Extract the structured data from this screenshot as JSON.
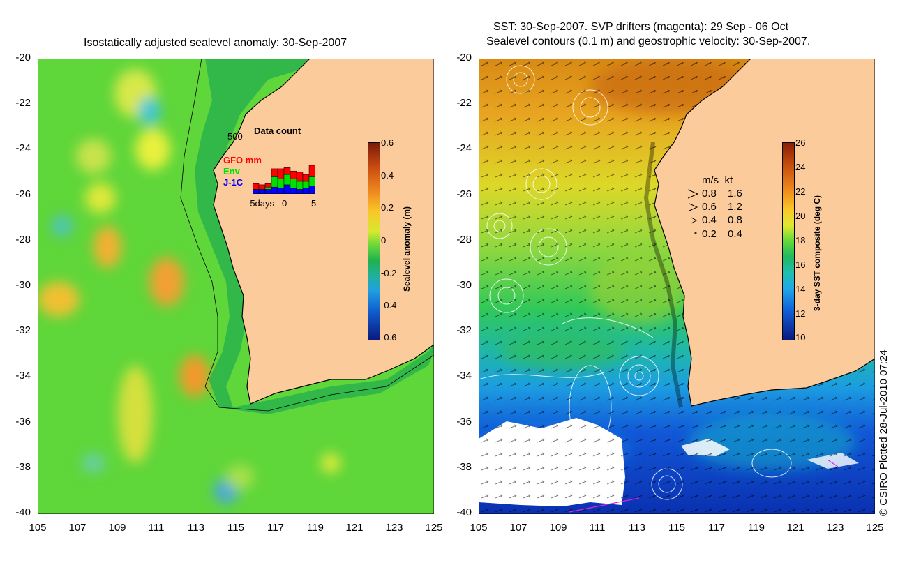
{
  "left_panel": {
    "title": "Isostatically adjusted sealevel anomaly: 30-Sep-2007",
    "y_ticks": [
      "-20",
      "-22",
      "-24",
      "-26",
      "-28",
      "-30",
      "-32",
      "-34",
      "-36",
      "-38",
      "-40"
    ],
    "x_ticks": [
      "105",
      "107",
      "109",
      "111",
      "113",
      "115",
      "117",
      "119",
      "121",
      "123",
      "125"
    ],
    "colorbar": {
      "ticks": [
        "0.6",
        "0.4",
        "0.2",
        "0",
        "-0.2",
        "-0.4",
        "-0.6"
      ],
      "label": "Sealevel anomaly (m)"
    },
    "inset": {
      "title": "Data count",
      "y_max": "500",
      "x_ticks": [
        "-5days",
        "0",
        "5"
      ],
      "legend": [
        {
          "label": "GFO mm",
          "color": "#ff0000"
        },
        {
          "label": "Env",
          "color": "#00e000"
        },
        {
          "label": "J-1C",
          "color": "#0000ff"
        }
      ],
      "bars": [
        {
          "day": -5,
          "j1c": 40,
          "env": 0,
          "gfo": 50
        },
        {
          "day": -4,
          "j1c": 40,
          "env": 0,
          "gfo": 40
        },
        {
          "day": -3,
          "j1c": 40,
          "env": 20,
          "gfo": 30
        },
        {
          "day": -2,
          "j1c": 60,
          "env": 90,
          "gfo": 70
        },
        {
          "day": -1,
          "j1c": 50,
          "env": 80,
          "gfo": 90
        },
        {
          "day": 0,
          "j1c": 80,
          "env": 90,
          "gfo": 60
        },
        {
          "day": 1,
          "j1c": 50,
          "env": 80,
          "gfo": 70
        },
        {
          "day": 2,
          "j1c": 40,
          "env": 70,
          "gfo": 80
        },
        {
          "day": 3,
          "j1c": 50,
          "env": 60,
          "gfo": 60
        },
        {
          "day": 4,
          "j1c": 70,
          "env": 80,
          "gfo": 100
        }
      ]
    }
  },
  "right_panel": {
    "title_line1": "SST: 30-Sep-2007. SVP drifters (magenta): 29 Sep - 06 Oct",
    "title_line2": "Sealevel contours (0.1 m) and geostrophic velocity: 30-Sep-2007.",
    "y_ticks": [
      "-20",
      "-22",
      "-24",
      "-26",
      "-28",
      "-30",
      "-32",
      "-34",
      "-36",
      "-38",
      "-40"
    ],
    "x_ticks": [
      "105",
      "107",
      "109",
      "111",
      "113",
      "115",
      "117",
      "119",
      "121",
      "123",
      "125"
    ],
    "colorbar": {
      "ticks": [
        "26",
        "24",
        "22",
        "20",
        "18",
        "16",
        "14",
        "12",
        "10"
      ],
      "label": "3-day SST composite (deg C)"
    },
    "velocity_legend": {
      "header": "m/s  kt",
      "rows": [
        {
          "ms": "0.8",
          "kt": "1.6"
        },
        {
          "ms": "0.6",
          "kt": "1.2"
        },
        {
          "ms": "0.4",
          "kt": "0.8"
        },
        {
          "ms": "0.2",
          "kt": "0.4"
        }
      ]
    }
  },
  "colors": {
    "land": "#fccb9c",
    "ocean_green": "#33c833",
    "coast": "#000000"
  },
  "copyright": "© CSIRO Plotted 28-Jul-2010 07:24"
}
